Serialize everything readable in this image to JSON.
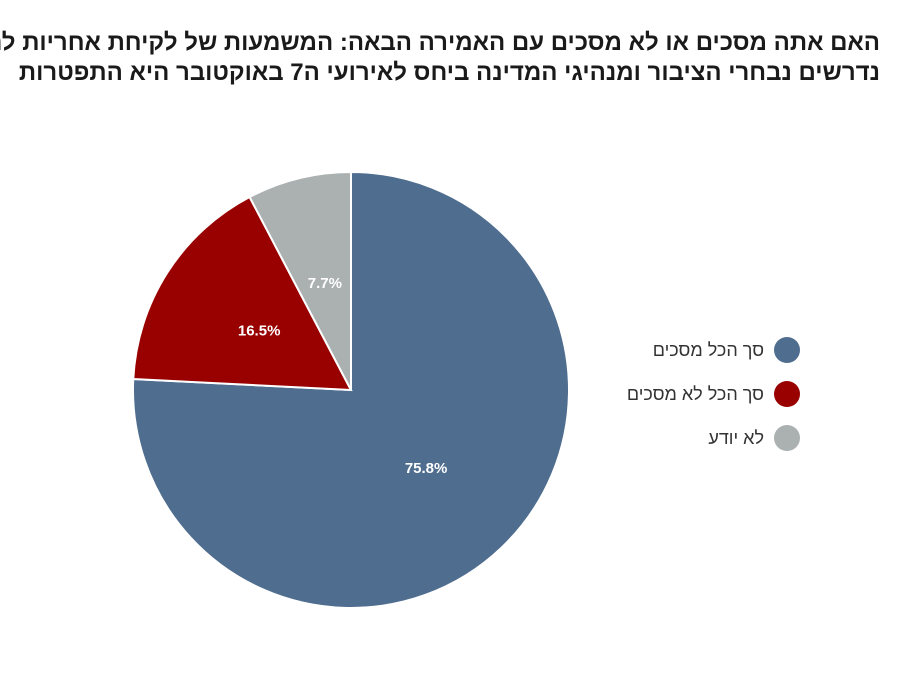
{
  "chart_data": {
    "type": "pie",
    "title_lines": [
      "האם אתה מסכים או לא מסכים עם האמירה הבאה: המשמעות של לקיחת אחריות לה",
      "נדרשים נבחרי הציבור ומנהיגי המדינה ביחס לאירועי ה7 באוקטובר  היא התפטרות"
    ],
    "categories": [
      "סך הכל מסכים",
      "סך הכל לא מסכים",
      "לא יודע"
    ],
    "values": [
      75.8,
      16.5,
      7.7
    ],
    "labels": [
      "75.8%",
      "16.5%",
      "7.7%"
    ],
    "colors": [
      "#4f6d8f",
      "#990000",
      "#abb0b0"
    ],
    "legend_position": "right"
  }
}
